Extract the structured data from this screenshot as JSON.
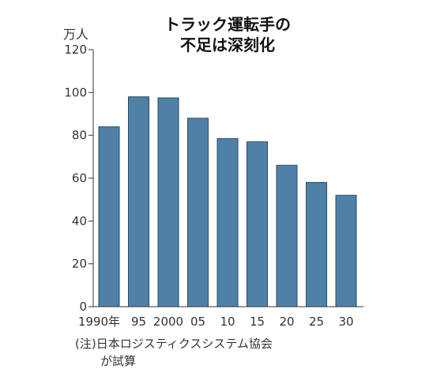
{
  "chart_data": {
    "type": "bar",
    "title_lines": [
      "トラック運転手の",
      "不足は深刻化"
    ],
    "ylabel": "万人",
    "categories": [
      "1990年",
      "95",
      "2000",
      "05",
      "10",
      "15",
      "20",
      "25",
      "30"
    ],
    "values": [
      84,
      98,
      97.5,
      88,
      78.5,
      77,
      66,
      58,
      52
    ],
    "ylim": [
      0,
      120
    ],
    "yticks": [
      0,
      20,
      40,
      60,
      80,
      100,
      120
    ],
    "bar_color": "#4f81a6",
    "grid": false
  },
  "note_lines": [
    "(注)日本ロジスティクスシステム協会",
    "が試算"
  ]
}
